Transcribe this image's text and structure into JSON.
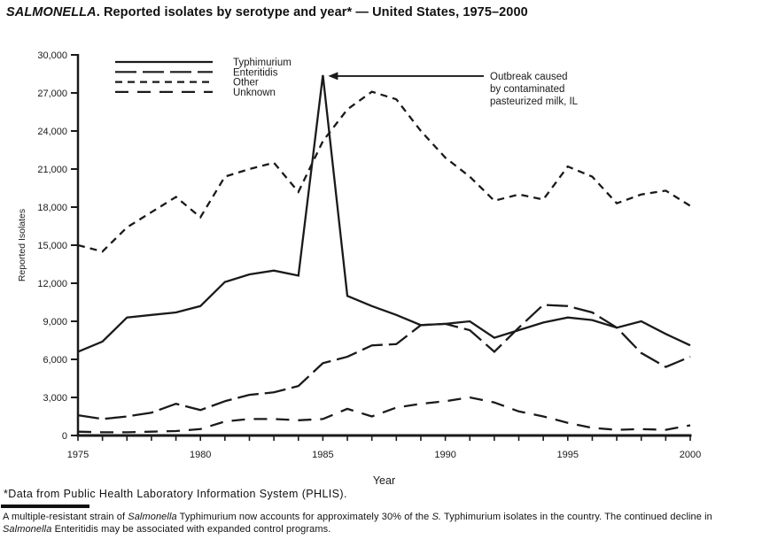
{
  "header": {
    "title_segments": [
      {
        "text": "SALMONELLA",
        "italic": true
      },
      {
        "text": ". Reported isolates by serotype and year* — United States, 1975–2000",
        "italic": false
      }
    ]
  },
  "chart_data": {
    "type": "line",
    "xlabel": "Year",
    "ylabel": "Reported Isolates",
    "ylim": [
      0,
      30000
    ],
    "grid": false,
    "legend_position": "top-left",
    "color": "#1a1a1a",
    "x": [
      1975,
      1976,
      1977,
      1978,
      1979,
      1980,
      1981,
      1982,
      1983,
      1984,
      1985,
      1986,
      1987,
      1988,
      1989,
      1990,
      1991,
      1992,
      1993,
      1994,
      1995,
      1996,
      1997,
      1998,
      1999,
      2000
    ],
    "yticks": [
      {
        "value": 0,
        "label": "0"
      },
      {
        "value": 3000,
        "label": "3,000"
      },
      {
        "value": 6000,
        "label": "6,000"
      },
      {
        "value": 9000,
        "label": "9,000"
      },
      {
        "value": 12000,
        "label": "12,000"
      },
      {
        "value": 15000,
        "label": "15,000"
      },
      {
        "value": 18000,
        "label": "18,000"
      },
      {
        "value": 21000,
        "label": "21,000"
      },
      {
        "value": 24000,
        "label": "24,000"
      },
      {
        "value": 27000,
        "label": "27,000"
      },
      {
        "value": 30000,
        "label": "30,000"
      }
    ],
    "xticks": [
      {
        "value": 1975,
        "label": "1975"
      },
      {
        "value": 1980,
        "label": "1980"
      },
      {
        "value": 1985,
        "label": "1985"
      },
      {
        "value": 1990,
        "label": "1990"
      },
      {
        "value": 1995,
        "label": "1995"
      },
      {
        "value": 2000,
        "label": "2000"
      }
    ],
    "series": [
      {
        "name": "Typhimurium",
        "dash": "solid",
        "values": [
          6600,
          7400,
          9300,
          9500,
          9700,
          10200,
          12100,
          12700,
          13000,
          12600,
          28400,
          11000,
          10200,
          9500,
          8700,
          8800,
          9000,
          7700,
          8300,
          8900,
          9300,
          9100,
          8500,
          9000,
          8000,
          7100
        ]
      },
      {
        "name": "Enteritidis",
        "dash": "long-dash",
        "values": [
          1600,
          1300,
          1500,
          1800,
          2500,
          2000,
          2700,
          3200,
          3400,
          3900,
          5700,
          6200,
          7100,
          7200,
          8700,
          8800,
          8300,
          6600,
          8500,
          10300,
          10200,
          9700,
          8500,
          6500,
          5400,
          6200
        ]
      },
      {
        "name": "Other",
        "dash": "short-dash",
        "values": [
          15000,
          14500,
          16400,
          17600,
          18800,
          17200,
          20400,
          21000,
          21500,
          19200,
          23200,
          25700,
          27100,
          26500,
          24000,
          21900,
          20400,
          18500,
          19000,
          18600,
          21200,
          20400,
          18300,
          19000,
          19300,
          18100
        ]
      },
      {
        "name": "Unknown",
        "dash": "medium-dash",
        "values": [
          300,
          250,
          250,
          300,
          350,
          500,
          1100,
          1300,
          1300,
          1200,
          1300,
          2100,
          1500,
          2200,
          2500,
          2700,
          3000,
          2600,
          1900,
          1500,
          1000,
          600,
          450,
          500,
          450,
          800
        ]
      }
    ],
    "annotation": {
      "lines": [
        "Outbreak caused",
        "by contaminated",
        "pasteurized milk, IL"
      ],
      "target_year": 1985,
      "target_value": 28400
    }
  },
  "footnotes": {
    "source": "*Data from Public Health Laboratory Information System (PHLIS).",
    "note_lines": [
      [
        {
          "text": "A multiple-resistant strain of ",
          "italic": false
        },
        {
          "text": "Salmonella",
          "italic": true
        },
        {
          "text": " Typhimurium now accounts for approximately 30% of the ",
          "italic": false
        },
        {
          "text": "S.",
          "italic": true
        },
        {
          "text": " Typhimurium isolates in the country. The continued decline in",
          "italic": false
        }
      ],
      [
        {
          "text": "Salmonella",
          "italic": true
        },
        {
          "text": " Enteritidis may be associated with expanded control programs.",
          "italic": false
        }
      ]
    ]
  }
}
